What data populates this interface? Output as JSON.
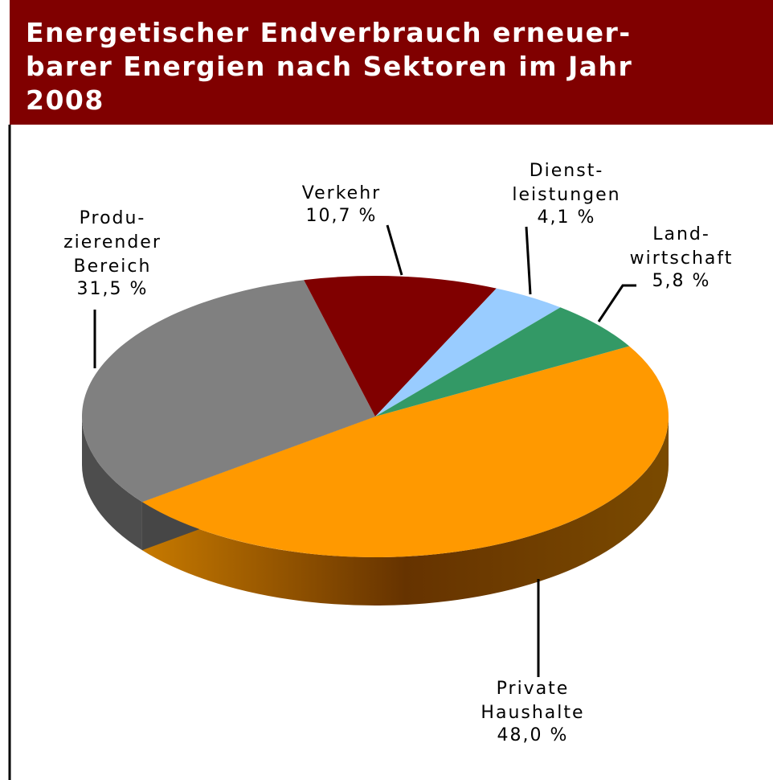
{
  "chart_data": {
    "type": "pie",
    "title": [
      "Energetischer Endverbrauch erneuer-",
      "barer Energien nach Sektoren im Jahr",
      "2008"
    ],
    "categories": [
      [
        "Private",
        "Haushalte"
      ],
      [
        "Produ-",
        "zierender",
        "Bereich"
      ],
      [
        "Verkehr"
      ],
      [
        "Dienst-",
        "leistungen"
      ],
      [
        "Land-",
        "wirtschaft"
      ]
    ],
    "values": [
      48.0,
      31.5,
      10.7,
      4.1,
      5.8
    ],
    "value_labels": [
      "48,0 %",
      "31,5 %",
      "10,7 %",
      "4,1 %",
      "5,8 %"
    ],
    "colors": [
      "#ff9900",
      "#808080",
      "#800000",
      "#99ccff",
      "#339966"
    ]
  }
}
